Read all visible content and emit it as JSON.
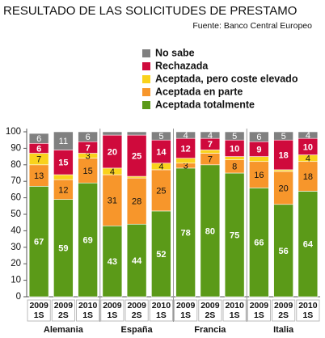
{
  "chart_data": {
    "type": "stacked_bar",
    "title": "RESULTADO DE LAS SOLICITUDES DE PRESTAMO",
    "subtitle": "Fuente: Banco Central Europeo",
    "groups": [
      {
        "name": "Alemania",
        "categories": [
          "2009 1S",
          "2009 2S",
          "2010 1S"
        ]
      },
      {
        "name": "España",
        "categories": [
          "2009 1S",
          "2009 2S",
          "2010 1S"
        ]
      },
      {
        "name": "Francia",
        "categories": [
          "2009 1S",
          "2009 2S",
          "2010 1S"
        ]
      },
      {
        "name": "Italia",
        "categories": [
          "2009 1S",
          "2009 2S",
          "2010 1S"
        ]
      }
    ],
    "series": [
      {
        "name": "Aceptada totalmente",
        "color": "#5b9a18",
        "values": [
          67,
          59,
          69,
          43,
          44,
          52,
          78,
          80,
          75,
          66,
          56,
          64
        ]
      },
      {
        "name": "Aceptada en parte",
        "color": "#f7962b",
        "values": [
          13,
          12,
          15,
          31,
          28,
          25,
          3,
          7,
          8,
          16,
          20,
          18
        ]
      },
      {
        "name": "Aceptada, pero coste elevado",
        "color": "#f9d21c",
        "values": [
          7,
          3,
          3,
          4,
          1,
          4,
          3,
          2,
          2,
          3,
          1,
          4
        ],
        "value_labels": [
          "7",
          null,
          "3",
          "4",
          null,
          "4",
          null,
          null,
          null,
          null,
          null,
          "4"
        ]
      },
      {
        "name": "Rechazada",
        "color": "#cf0a3c",
        "values": [
          6,
          15,
          7,
          20,
          25,
          14,
          12,
          7,
          10,
          9,
          18,
          10
        ]
      },
      {
        "name": "No sabe",
        "color": "#808080",
        "values": [
          6,
          11,
          6,
          2,
          2,
          5,
          4,
          4,
          5,
          6,
          5,
          4
        ],
        "value_labels": [
          "6",
          "11",
          "6",
          null,
          null,
          "5",
          "4",
          "4",
          "5",
          "6",
          "5",
          "4"
        ]
      }
    ],
    "ylim": [
      0,
      100
    ],
    "yticks": [
      0,
      10,
      20,
      30,
      40,
      50,
      60,
      70,
      80,
      90,
      100
    ]
  }
}
